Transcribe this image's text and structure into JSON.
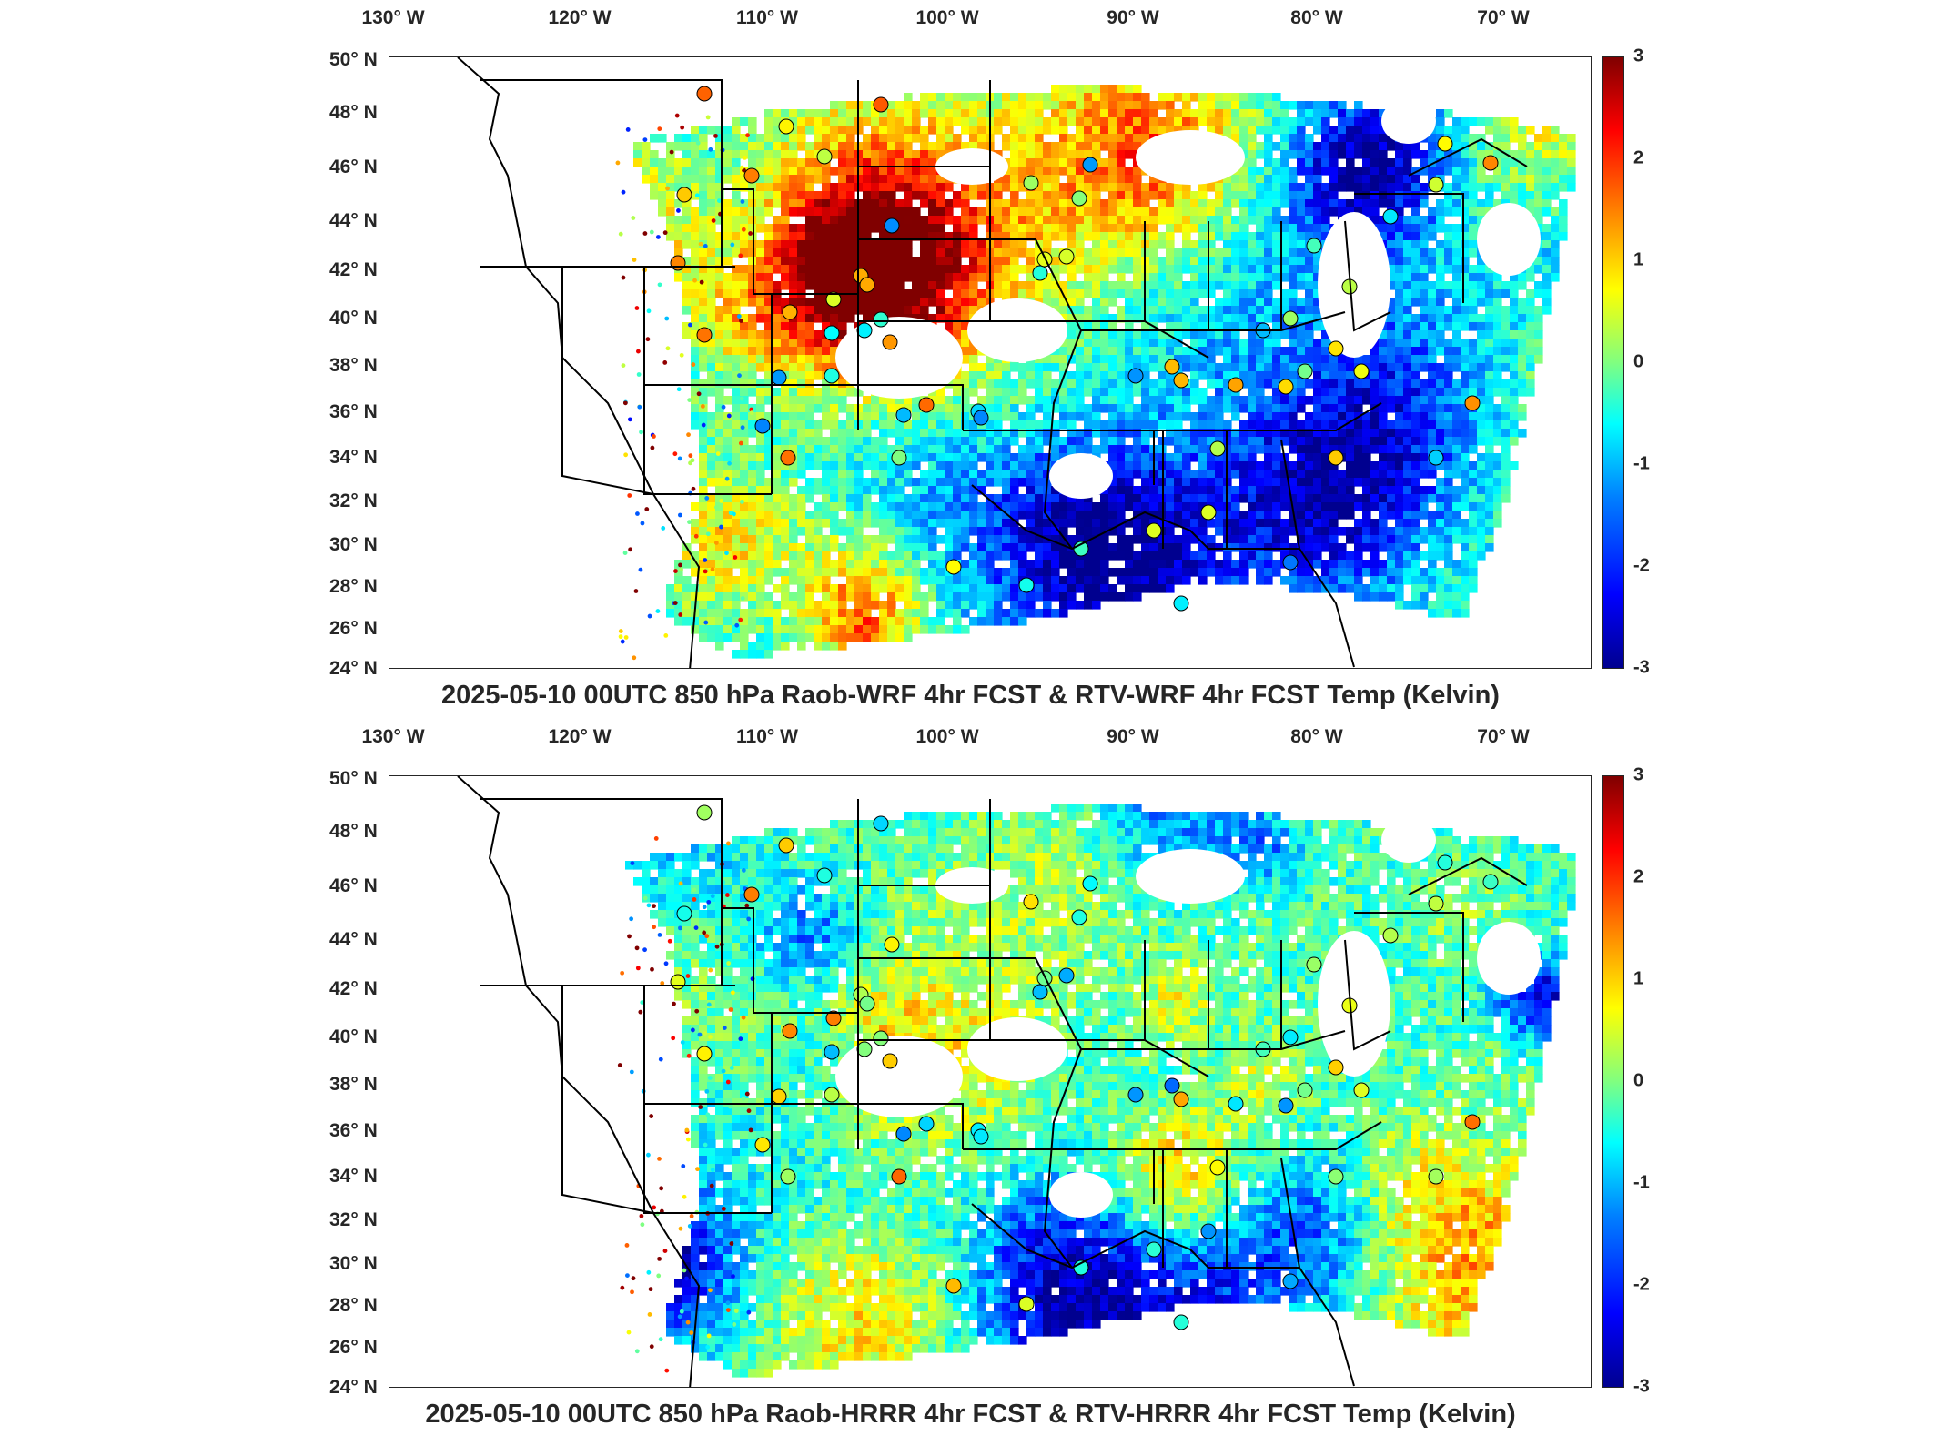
{
  "figure": {
    "panels": [
      {
        "id": "top",
        "title": "2025-05-10 00UTC 850 hPa Raob-WRF 4hr FCST & RTV-WRF 4hr FCST Temp (Kelvin)",
        "lon_labels": [
          "130° W",
          "120° W",
          "110° W",
          "100° W",
          "90° W",
          "80° W",
          "70° W"
        ],
        "lat_labels": [
          "50° N",
          "48° N",
          "46° N",
          "44° N",
          "42° N",
          "40° N",
          "38° N",
          "36° N",
          "34° N",
          "32° N",
          "30° N",
          "28° N",
          "26° N",
          "24° N"
        ],
        "colorbar_ticks": [
          "3",
          "2",
          "1",
          "0",
          "-1",
          "-2",
          "-3"
        ]
      },
      {
        "id": "bottom",
        "title": "2025-05-10 00UTC 850 hPa Raob-HRRR 4hr FCST & RTV-HRRR 4hr FCST Temp (Kelvin)",
        "lon_labels": [
          "130° W",
          "120° W",
          "110° W",
          "100° W",
          "90° W",
          "80° W",
          "70° W"
        ],
        "lat_labels": [
          "50° N",
          "48° N",
          "46° N",
          "44° N",
          "42° N",
          "40° N",
          "38° N",
          "36° N",
          "34° N",
          "32° N",
          "30° N",
          "28° N",
          "26° N",
          "24° N"
        ],
        "colorbar_ticks": [
          "3",
          "2",
          "1",
          "0",
          "-1",
          "-2",
          "-3"
        ]
      }
    ],
    "colormap": {
      "name": "jet",
      "range": [
        -3,
        3
      ],
      "colors": [
        "#00008f",
        "#0000ff",
        "#0080ff",
        "#00ffff",
        "#80ff80",
        "#ffff00",
        "#ff8000",
        "#ff0000",
        "#800000"
      ]
    },
    "map_extent": {
      "lon_min": -131,
      "lon_max": -64,
      "lat_min": 24,
      "lat_max": 50
    }
  }
}
